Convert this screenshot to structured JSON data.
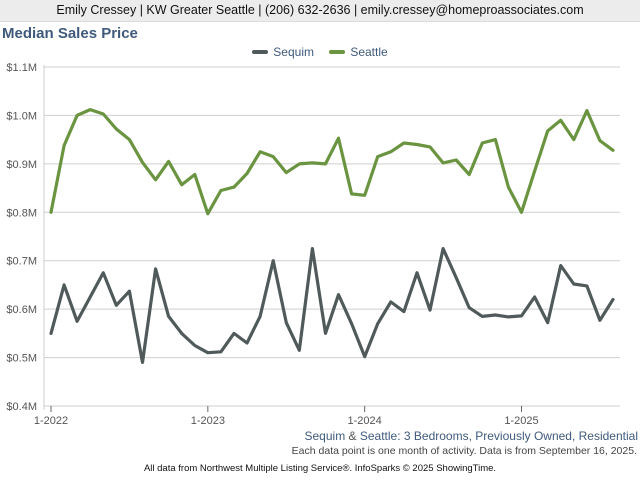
{
  "header": {
    "contact": "Emily Cressey | KW Greater Seattle | (206) 632-2636 | emily.cressey@homeproassociates.com"
  },
  "title": "Median Sales Price",
  "subtitle": {
    "series_a": "Sequim",
    "amp": " & ",
    "series_b": "Seattle",
    "rest": ": 3 Bedrooms, Previously Owned, Residential"
  },
  "note": "Each data point is one month of activity. Data is from September 16, 2025.",
  "footer": "All data from Northwest Multiple Listing Service®. InfoSparks © 2025 ShowingTime.",
  "colors": {
    "sequim": "#505a5a",
    "seattle": "#6a9440",
    "grid": "#cfcfcf",
    "axis_text": "#555555"
  },
  "chart_data": {
    "type": "line",
    "x": [
      "2022-01",
      "2022-02",
      "2022-03",
      "2022-04",
      "2022-05",
      "2022-06",
      "2022-07",
      "2022-08",
      "2022-09",
      "2022-10",
      "2022-11",
      "2022-12",
      "2023-01",
      "2023-02",
      "2023-03",
      "2023-04",
      "2023-05",
      "2023-06",
      "2023-07",
      "2023-08",
      "2023-09",
      "2023-10",
      "2023-11",
      "2023-12",
      "2024-01",
      "2024-02",
      "2024-03",
      "2024-04",
      "2024-05",
      "2024-06",
      "2024-07",
      "2024-08",
      "2024-09",
      "2024-10",
      "2024-11",
      "2024-12",
      "2025-01",
      "2025-02",
      "2025-03",
      "2025-04",
      "2025-05",
      "2025-06",
      "2025-07",
      "2025-08"
    ],
    "x_ticks": [
      {
        "x": "2022-01",
        "label": "1-2022"
      },
      {
        "x": "2023-01",
        "label": "1-2023"
      },
      {
        "x": "2024-01",
        "label": "1-2024"
      },
      {
        "x": "2025-01",
        "label": "1-2025"
      }
    ],
    "y_ticks": [
      {
        "value": 400000,
        "label": "$0.4M"
      },
      {
        "value": 500000,
        "label": "$0.5M"
      },
      {
        "value": 600000,
        "label": "$0.6M"
      },
      {
        "value": 700000,
        "label": "$0.7M"
      },
      {
        "value": 800000,
        "label": "$0.8M"
      },
      {
        "value": 900000,
        "label": "$0.9M"
      },
      {
        "value": 1000000,
        "label": "$1.0M"
      },
      {
        "value": 1100000,
        "label": "$1.1M"
      }
    ],
    "ylim": [
      400000,
      1100000
    ],
    "grid": true,
    "legend_position": "top-center",
    "series": [
      {
        "name": "Sequim",
        "color_key": "sequim",
        "values": [
          550000,
          650000,
          575000,
          625000,
          675000,
          608000,
          637000,
          490000,
          683000,
          585000,
          550000,
          525000,
          510000,
          512000,
          550000,
          530000,
          585000,
          700000,
          572000,
          515000,
          725000,
          550000,
          630000,
          570000,
          502000,
          570000,
          615000,
          595000,
          675000,
          598000,
          725000,
          665000,
          603000,
          585000,
          588000,
          584000,
          586000,
          625000,
          572000,
          690000,
          652000,
          648000,
          577000,
          620000
        ]
      },
      {
        "name": "Seattle",
        "color_key": "seattle",
        "values": [
          800000,
          938000,
          1000000,
          1012000,
          1003000,
          972000,
          950000,
          903000,
          867000,
          905000,
          857000,
          878000,
          797000,
          845000,
          852000,
          880000,
          925000,
          915000,
          882000,
          900000,
          902000,
          900000,
          953000,
          838000,
          835000,
          915000,
          925000,
          943000,
          940000,
          935000,
          902000,
          908000,
          878000,
          943000,
          950000,
          852000,
          800000,
          885000,
          968000,
          990000,
          950000,
          1010000,
          948000,
          928000
        ]
      }
    ]
  }
}
